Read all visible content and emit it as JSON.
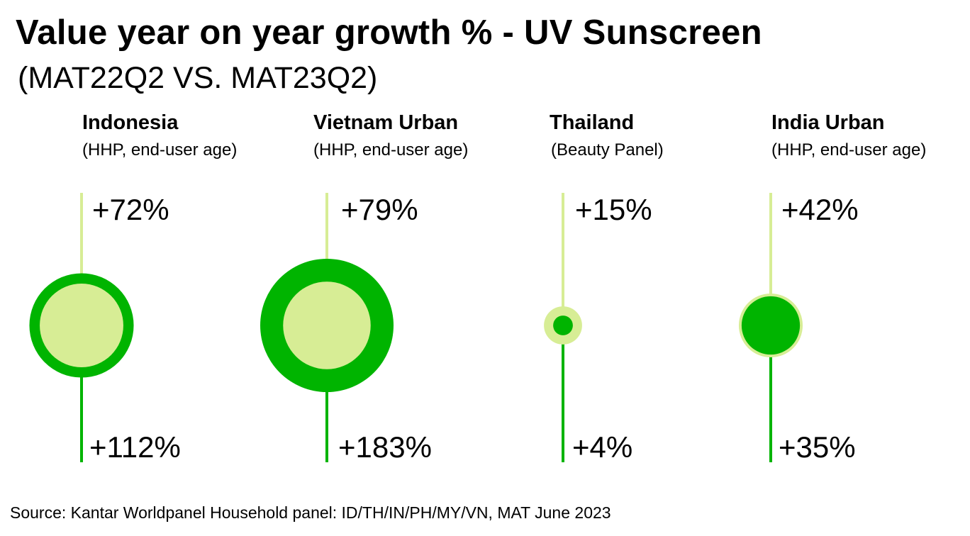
{
  "title": "Value year on year growth % - UV Sunscreen",
  "subtitle": "(MAT22Q2 VS. MAT23Q2)",
  "source": "Source: Kantar Worldpanel Household panel: ID/TH/IN/PH/MY/VN, MAT June 2023",
  "colors": {
    "total": "#00b400",
    "end_user": "#d7ed95"
  },
  "chart_data": {
    "type": "bubble",
    "categories": [
      "Indonesia",
      "Vietnam Urban",
      "Thailand",
      "India Urban"
    ],
    "panels": [
      "(HHP, end-user age)",
      "(HHP, end-user age)",
      "(Beauty Panel)",
      "(HHP, end-user age)"
    ],
    "series": [
      {
        "values": [
          72,
          79,
          15,
          42
        ],
        "labels": [
          "+72%",
          "+79%",
          "+15%",
          "+42%"
        ]
      },
      {
        "values": [
          112,
          183,
          4,
          35
        ],
        "labels": [
          "+112%",
          "+183%",
          "+4%",
          "+35%"
        ]
      }
    ]
  }
}
